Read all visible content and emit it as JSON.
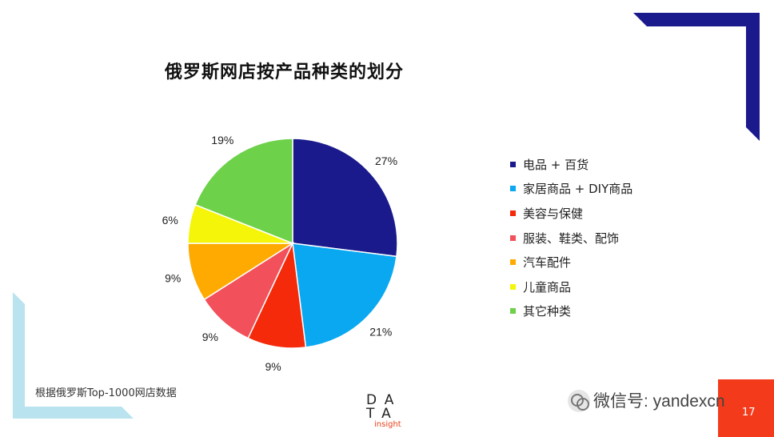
{
  "title": "俄罗斯网店按产品种类的划分",
  "source": "根据俄罗斯Top-1000网店数据",
  "logo": {
    "line1": "DA",
    "line2": "TA",
    "line3": "insight"
  },
  "watermark": "微信号: yandexcn",
  "page_number": "17",
  "chart_data": {
    "type": "pie",
    "title": "俄罗斯网店按产品种类的划分",
    "categories": [
      "电品 + 百货",
      "家居商品 + DIY商品",
      "美容与保健",
      "服装、鞋类、配饰",
      "汽车配件",
      "儿童商品",
      "其它种类"
    ],
    "values": [
      27,
      21,
      9,
      9,
      9,
      6,
      19
    ],
    "labels": [
      "27%",
      "21%",
      "9%",
      "9%",
      "9%",
      "6%",
      "19%"
    ],
    "colors": [
      "#1a1a8c",
      "#0aa8f0",
      "#f42a0b",
      "#f2505a",
      "#ffaa00",
      "#f5f50a",
      "#6ed14a"
    ],
    "legend": "right"
  },
  "legend": [
    {
      "label": "电品 + 百货",
      "color": "#1a1a8c"
    },
    {
      "label": "家居商品 + DIY商品",
      "color": "#0aa8f0"
    },
    {
      "label": "美容与保健",
      "color": "#f42a0b"
    },
    {
      "label": "服装、鞋类、配饰",
      "color": "#f2505a"
    },
    {
      "label": "汽车配件",
      "color": "#ffaa00"
    },
    {
      "label": "儿童商品",
      "color": "#f5f50a"
    },
    {
      "label": "其它种类",
      "color": "#6ed14a"
    }
  ],
  "decor": {
    "accent_navy": "#1a1a8c",
    "accent_light_blue": "#b9e3ee",
    "accent_red": "#f33b1c"
  }
}
